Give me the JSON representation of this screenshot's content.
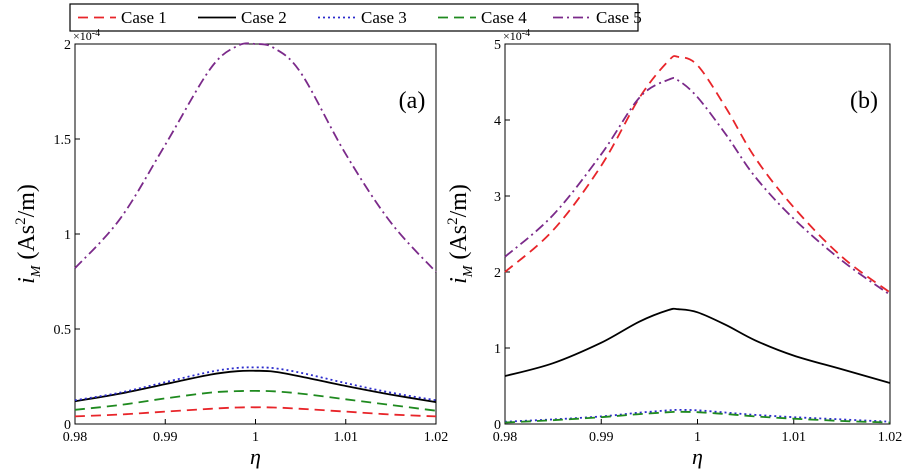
{
  "legend": {
    "items": [
      {
        "label": "Case 1",
        "color": "#e8252a",
        "dash": "10,6"
      },
      {
        "label": "Case 2",
        "color": "#000000",
        "dash": ""
      },
      {
        "label": "Case 3",
        "color": "#2b2bcc",
        "dash": "2,3"
      },
      {
        "label": "Case 4",
        "color": "#1f8a1f",
        "dash": "10,6"
      },
      {
        "label": "Case 5",
        "color": "#7b2a8a",
        "dash": "10,4,2,4"
      }
    ]
  },
  "chart_data": [
    {
      "type": "line",
      "panel_label": "(a)",
      "xlabel": "η",
      "ylabel_parts": {
        "sym": "i",
        "sub": "M",
        "unit_pre": "(As",
        "unit_sup": "2",
        "unit_post": "/m)"
      },
      "multiplier": "×10",
      "multiplier_exp": "-4",
      "xlim": [
        0.98,
        1.02
      ],
      "ylim": [
        0,
        2.0
      ],
      "xticks": [
        0.98,
        0.99,
        1.0,
        1.01,
        1.02
      ],
      "xtick_labels": [
        "0.98",
        "0.99",
        "1",
        "1.01",
        "1.02"
      ],
      "yticks": [
        0,
        0.5,
        1.0,
        1.5,
        2.0
      ],
      "ytick_labels": [
        "0",
        "0.5",
        "1",
        "1.5",
        "2"
      ],
      "x": [
        0.98,
        0.985,
        0.99,
        0.995,
        0.998,
        1.0,
        1.002,
        1.005,
        1.01,
        1.015,
        1.02
      ],
      "series": [
        {
          "name": "Case 1",
          "values": [
            0.04,
            0.05,
            0.065,
            0.08,
            0.087,
            0.088,
            0.087,
            0.08,
            0.065,
            0.05,
            0.04
          ]
        },
        {
          "name": "Case 2",
          "values": [
            0.12,
            0.16,
            0.21,
            0.26,
            0.278,
            0.28,
            0.276,
            0.25,
            0.2,
            0.155,
            0.115
          ]
        },
        {
          "name": "Case 3",
          "values": [
            0.125,
            0.165,
            0.22,
            0.275,
            0.295,
            0.298,
            0.294,
            0.27,
            0.215,
            0.165,
            0.125
          ]
        },
        {
          "name": "Case 4",
          "values": [
            0.075,
            0.1,
            0.135,
            0.165,
            0.173,
            0.174,
            0.172,
            0.16,
            0.13,
            0.1,
            0.07
          ]
        },
        {
          "name": "Case 5",
          "values": [
            0.82,
            1.08,
            1.47,
            1.87,
            1.99,
            2.0,
            1.98,
            1.85,
            1.42,
            1.06,
            0.8
          ]
        }
      ]
    },
    {
      "type": "line",
      "panel_label": "(b)",
      "xlabel": "η",
      "ylabel_parts": {
        "sym": "i",
        "sub": "M",
        "unit_pre": "(As",
        "unit_sup": "2",
        "unit_post": "/m)"
      },
      "multiplier": "×10",
      "multiplier_exp": "-4",
      "xlim": [
        0.98,
        1.02
      ],
      "ylim": [
        0,
        5
      ],
      "xticks": [
        0.98,
        0.99,
        1.0,
        1.01,
        1.02
      ],
      "xtick_labels": [
        "0.98",
        "0.99",
        "1",
        "1.01",
        "1.02"
      ],
      "yticks": [
        0,
        1,
        2,
        3,
        4,
        5
      ],
      "ytick_labels": [
        "0",
        "1",
        "2",
        "3",
        "4",
        "5"
      ],
      "x": [
        0.98,
        0.985,
        0.99,
        0.994,
        0.997,
        0.998,
        1.0,
        1.003,
        1.006,
        1.01,
        1.015,
        1.02
      ],
      "series": [
        {
          "name": "Case 1",
          "values": [
            2.0,
            2.55,
            3.4,
            4.3,
            4.78,
            4.83,
            4.72,
            4.15,
            3.5,
            2.85,
            2.2,
            1.73
          ]
        },
        {
          "name": "Case 2",
          "values": [
            0.63,
            0.8,
            1.07,
            1.35,
            1.5,
            1.51,
            1.47,
            1.3,
            1.1,
            0.9,
            0.72,
            0.54
          ]
        },
        {
          "name": "Case 3",
          "values": [
            0.03,
            0.06,
            0.1,
            0.15,
            0.18,
            0.185,
            0.18,
            0.15,
            0.12,
            0.09,
            0.06,
            0.03
          ]
        },
        {
          "name": "Case 4",
          "values": [
            0.02,
            0.05,
            0.09,
            0.13,
            0.155,
            0.16,
            0.155,
            0.13,
            0.1,
            0.07,
            0.04,
            0.02
          ]
        },
        {
          "name": "Case 5",
          "values": [
            2.2,
            2.75,
            3.55,
            4.3,
            4.53,
            4.52,
            4.3,
            3.8,
            3.25,
            2.7,
            2.15,
            1.7
          ]
        }
      ]
    }
  ]
}
